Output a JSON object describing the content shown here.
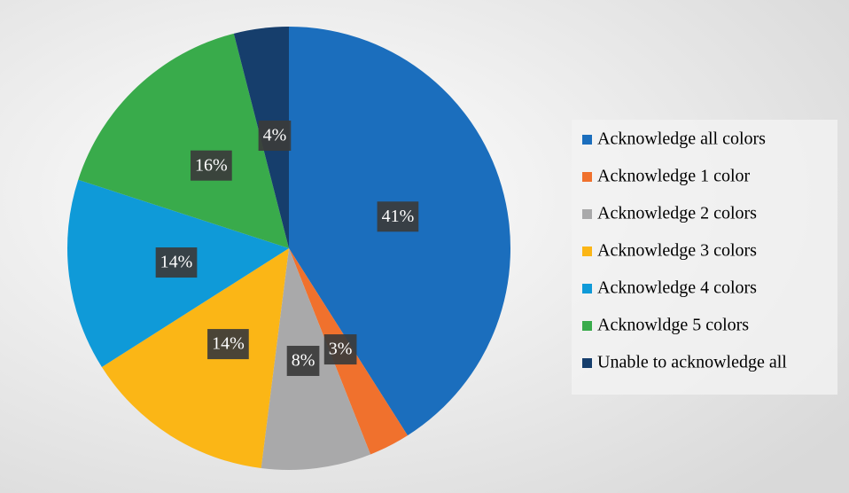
{
  "chart_data": {
    "type": "pie",
    "categories": [
      "Acknowledge all colors",
      "Acknowledge 1 color",
      "Acknowledge 2 colors",
      "Acknowledge 3 colors",
      "Acknowledge 4 colors",
      "Acknowldge 5 colors",
      "Unable to acknowledge all"
    ],
    "values": [
      41,
      3,
      8,
      14,
      14,
      16,
      4
    ],
    "value_labels": [
      "41%",
      "3%",
      "8%",
      "14%",
      "14%",
      "16%",
      "4%"
    ],
    "colors": [
      "#1b6ebd",
      "#f0712d",
      "#a9a9aa",
      "#fbb616",
      "#0f9ad8",
      "#39ab4b",
      "#163e6c"
    ],
    "legend": "right"
  }
}
